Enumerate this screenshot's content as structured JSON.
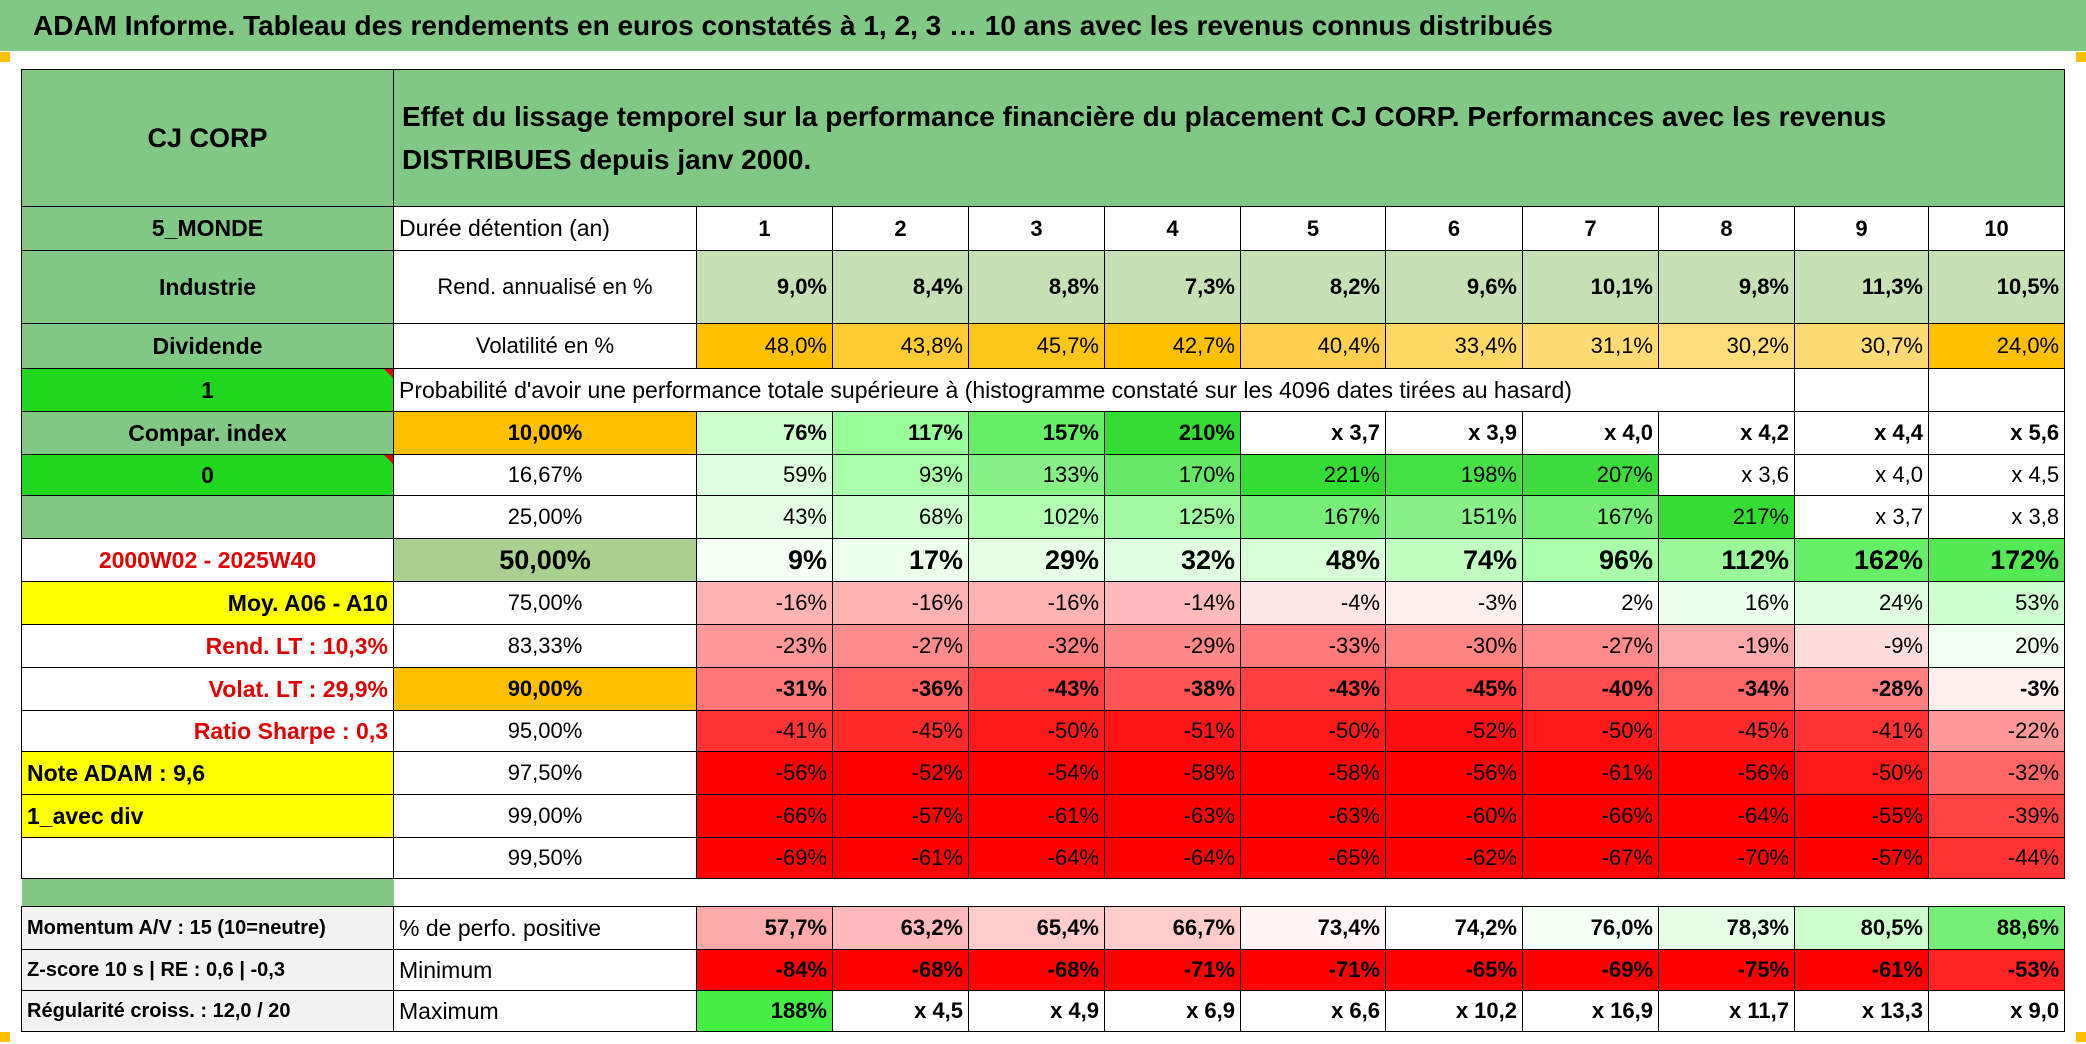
{
  "title": "ADAM Informe. Tableau des rendements en euros constatés à 1, 2, 3 … 10 ans avec les revenus connus distribués",
  "header": {
    "name": "CJ CORP",
    "description": "Effet du lissage temporel sur la performance financière du placement CJ CORP. Performances avec les revenus DISTRIBUES depuis janv 2000."
  },
  "rows": [
    {
      "label": "5_MONDE",
      "label_fill": "#80c883",
      "caption": "Durée détention (an)",
      "values": [
        1,
        2,
        3,
        4,
        5,
        6,
        7,
        8,
        9,
        10
      ],
      "bold": true,
      "align": "center"
    },
    {
      "label": "Industrie",
      "label_fill": "#80c883",
      "caption": "Rend. annualisé en %",
      "bold": true,
      "values": [
        "9,0%",
        "8,4%",
        "8,8%",
        "7,3%",
        "8,2%",
        "9,6%",
        "10,1%",
        "9,8%",
        "11,3%",
        "10,5%"
      ],
      "colors": [
        "#c6e0b4",
        "#c6e0b4",
        "#c6e0b4",
        "#c6e0b4",
        "#c6e0b4",
        "#c6e0b4",
        "#c6e0b4",
        "#c6e0b4",
        "#c6e0b4",
        "#c6e0b4"
      ]
    },
    {
      "label": "Dividende",
      "label_fill": "#80c883",
      "caption": "Volatilité en %",
      "values": [
        "48,0%",
        "43,8%",
        "45,7%",
        "42,7%",
        "40,4%",
        "33,4%",
        "31,1%",
        "30,2%",
        "30,7%",
        "24,0%"
      ],
      "colors": [
        "#ffc000",
        "#ffcc33",
        "#ffc61a",
        "#ffc000",
        "#ffd04d",
        "#ffd966",
        "#ffdc73",
        "#ffdd78",
        "#ffdc73",
        "#ffc000"
      ]
    },
    {
      "label": "1",
      "label_fill": "#1fd81f",
      "caption": "Probabilité d'avoir une performance totale supérieure à (histogramme constaté sur les 4096 dates tirées au hasard)"
    },
    {
      "label": "Compar. index",
      "label_fill": "#80c883",
      "caption": "10,00%",
      "caption_fill": "#ffc000",
      "bold": true,
      "values": [
        "76%",
        "117%",
        "157%",
        "210%",
        "x 3,7",
        "x 3,9",
        "x 4,0",
        "x 4,2",
        "x 4,4",
        "x 5,6"
      ],
      "colors": [
        "#ccffcc",
        "#99ff99",
        "#66ee66",
        "#33dd33",
        "#ffffff",
        "#ffffff",
        "#ffffff",
        "#ffffff",
        "#ffffff",
        "#ffffff"
      ]
    },
    {
      "label": "0",
      "label_fill": "#1fd81f",
      "caption": "16,67%",
      "values": [
        "59%",
        "93%",
        "133%",
        "170%",
        "221%",
        "198%",
        "207%",
        "x 3,6",
        "x 4,0",
        "x 4,5"
      ],
      "colors": [
        "#ddffdd",
        "#aaffaa",
        "#88f088",
        "#66e866",
        "#33dd33",
        "#44e044",
        "#3ddc3d",
        "#ffffff",
        "#ffffff",
        "#ffffff"
      ]
    },
    {
      "label_fill": "#80c883",
      "caption": "25,00%",
      "values": [
        "43%",
        "68%",
        "102%",
        "125%",
        "167%",
        "151%",
        "167%",
        "217%",
        "x 3,7",
        "x 3,8"
      ],
      "colors": [
        "#e6ffe6",
        "#ccffcc",
        "#b3ffb3",
        "#a0f8a0",
        "#77ee77",
        "#88f088",
        "#77ee77",
        "#33dd33",
        "#ffffff",
        "#ffffff"
      ]
    },
    {
      "label": "2000W02 - 2025W40",
      "label_color": "#e00000",
      "caption": "50,00%",
      "caption_fill": "#a9d08e",
      "bold": true,
      "large": true,
      "values": [
        "9%",
        "17%",
        "29%",
        "32%",
        "48%",
        "74%",
        "96%",
        "112%",
        "162%",
        "172%"
      ],
      "colors": [
        "#f5fff5",
        "#eeffee",
        "#e6ffe6",
        "#e0ffe0",
        "#d6ffd6",
        "#c0ffc0",
        "#aaffaa",
        "#99f899",
        "#66ee66",
        "#55e855"
      ]
    },
    {
      "label": "Moy. A06 - A10",
      "label_fill": "#ffff00",
      "label_align": "right",
      "caption": "75,00%",
      "values": [
        "-16%",
        "-16%",
        "-16%",
        "-14%",
        "-4%",
        "-3%",
        "2%",
        "16%",
        "24%",
        "53%"
      ],
      "colors": [
        "#ffb3b3",
        "#ffb3b3",
        "#ffb3b3",
        "#ffbbbb",
        "#ffe6e6",
        "#ffeeee",
        "#ffffff",
        "#eeffee",
        "#e0ffe0",
        "#ccffcc"
      ]
    },
    {
      "label": "Rend. LT :   10,3%",
      "label_color": "#e00000",
      "label_align": "right",
      "caption": "83,33%",
      "values": [
        "-23%",
        "-27%",
        "-32%",
        "-29%",
        "-33%",
        "-30%",
        "-27%",
        "-19%",
        "-9%",
        "20%"
      ],
      "colors": [
        "#ff9999",
        "#ff8c8c",
        "#ff7f7f",
        "#ff8888",
        "#ff7a7a",
        "#ff8585",
        "#ff8c8c",
        "#ffaaaa",
        "#ffdddd",
        "#f0fff0"
      ]
    },
    {
      "label": "Volat. LT :   29,9%",
      "label_color": "#e00000",
      "label_align": "right",
      "caption": "90,00%",
      "caption_fill": "#ffc000",
      "bold": true,
      "values": [
        "-31%",
        "-36%",
        "-43%",
        "-38%",
        "-43%",
        "-45%",
        "-40%",
        "-34%",
        "-28%",
        "-3%"
      ],
      "colors": [
        "#ff7777",
        "#ff5f5f",
        "#ff4040",
        "#ff5555",
        "#ff4040",
        "#ff3838",
        "#ff4d4d",
        "#ff6666",
        "#ff8080",
        "#fff0f0"
      ]
    },
    {
      "label": "Ratio Sharpe :    0,3",
      "label_color": "#e00000",
      "label_align": "right",
      "caption": "95,00%",
      "values": [
        "-41%",
        "-45%",
        "-50%",
        "-51%",
        "-50%",
        "-52%",
        "-50%",
        "-45%",
        "-41%",
        "-22%"
      ],
      "colors": [
        "#ff3333",
        "#ff2a2a",
        "#ff1a1a",
        "#ff1515",
        "#ff1a1a",
        "#ff1010",
        "#ff1a1a",
        "#ff2a2a",
        "#ff3333",
        "#ff9999"
      ]
    },
    {
      "label": "Note ADAM : 9,6",
      "label_fill": "#ffff00",
      "label_align": "left",
      "caption": "97,50%",
      "values": [
        "-56%",
        "-52%",
        "-54%",
        "-58%",
        "-58%",
        "-56%",
        "-61%",
        "-56%",
        "-50%",
        "-32%"
      ],
      "colors": [
        "#ff0000",
        "#ff0000",
        "#ff0000",
        "#ff0000",
        "#ff0000",
        "#ff0000",
        "#ff0000",
        "#ff0000",
        "#ff1a1a",
        "#ff6666"
      ]
    },
    {
      "label": "1_avec div",
      "label_fill": "#ffff00",
      "label_align": "left",
      "caption": "99,00%",
      "values": [
        "-66%",
        "-57%",
        "-61%",
        "-63%",
        "-63%",
        "-60%",
        "-66%",
        "-64%",
        "-55%",
        "-39%"
      ],
      "colors": [
        "#ff0000",
        "#ff0000",
        "#ff0000",
        "#ff0000",
        "#ff0000",
        "#ff0000",
        "#ff0000",
        "#ff0000",
        "#ff0000",
        "#ff4444"
      ]
    },
    {
      "caption": "99,50%",
      "values": [
        "-69%",
        "-61%",
        "-64%",
        "-64%",
        "-65%",
        "-62%",
        "-67%",
        "-70%",
        "-57%",
        "-44%"
      ],
      "colors": [
        "#ff0000",
        "#ff0000",
        "#ff0000",
        "#ff0000",
        "#ff0000",
        "#ff0000",
        "#ff0000",
        "#ff0000",
        "#ff0000",
        "#ff3333"
      ]
    }
  ],
  "footer_rows": [
    {
      "label": "Momentum A/V : 15 (10=neutre)",
      "caption": "% de perfo. positive",
      "values": [
        "57,7%",
        "63,2%",
        "65,4%",
        "66,7%",
        "73,4%",
        "74,2%",
        "76,0%",
        "78,3%",
        "80,5%",
        "88,6%"
      ],
      "colors": [
        "#ffaaaa",
        "#ffbbbb",
        "#ffcccc",
        "#ffcccc",
        "#fff5f5",
        "#ffffff",
        "#f5fff5",
        "#e6ffe6",
        "#ccffcc",
        "#77ee77"
      ]
    },
    {
      "label": "Z-score 10 s | RE : 0,6 | -0,3",
      "caption": "Minimum",
      "values": [
        "-84%",
        "-68%",
        "-68%",
        "-71%",
        "-71%",
        "-65%",
        "-69%",
        "-75%",
        "-61%",
        "-53%"
      ],
      "colors": [
        "#ff0000",
        "#ff0000",
        "#ff0000",
        "#ff0000",
        "#ff0000",
        "#ff0000",
        "#ff0000",
        "#ff0000",
        "#ff0000",
        "#ff2222"
      ]
    },
    {
      "label": "Régularité croiss. : 12,0 / 20",
      "caption": "Maximum",
      "values": [
        "188%",
        "x 4,5",
        "x 4,9",
        "x 6,9",
        "x 6,6",
        "x 10,2",
        "x 16,9",
        "x 11,7",
        "x 13,3",
        "x 9,0"
      ],
      "colors": [
        "#44ee44",
        "#ffffff",
        "#ffffff",
        "#ffffff",
        "#ffffff",
        "#ffffff",
        "#ffffff",
        "#ffffff",
        "#ffffff",
        "#ffffff"
      ]
    }
  ]
}
